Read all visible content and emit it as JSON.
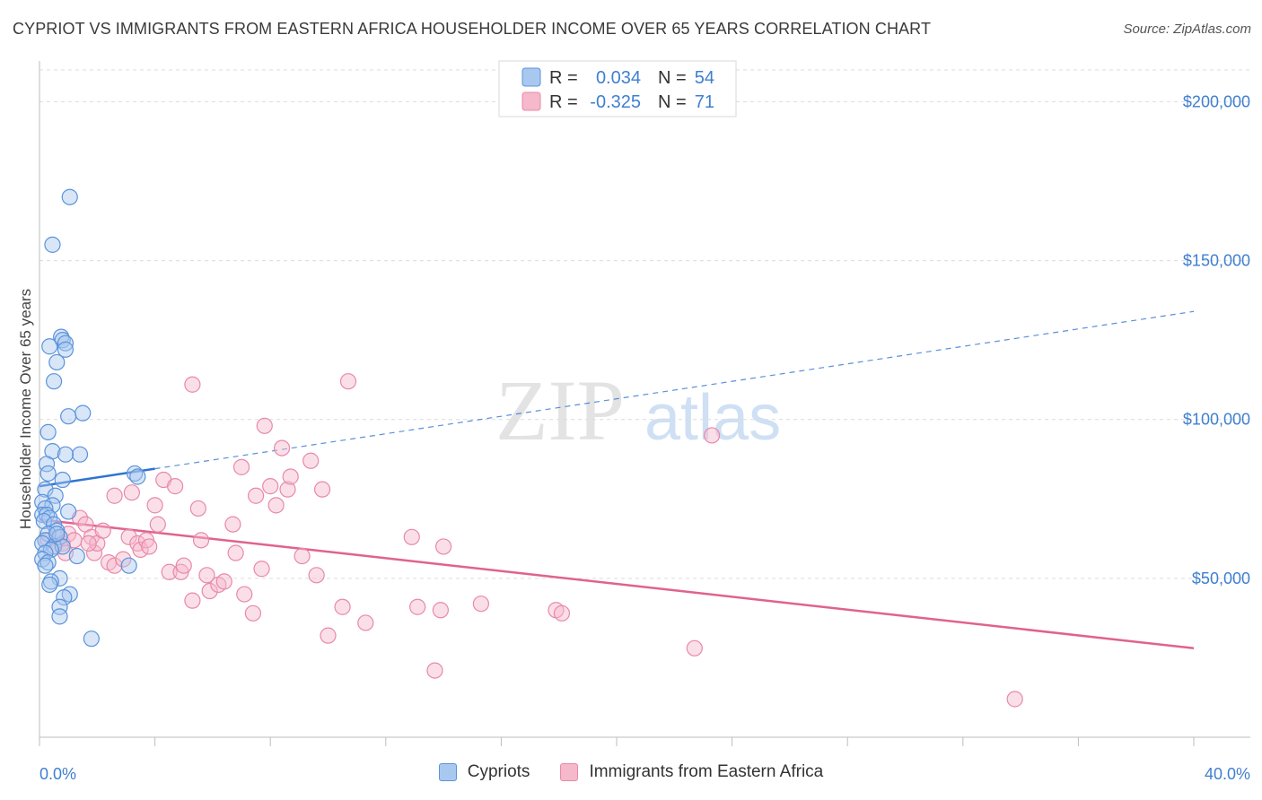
{
  "header": {
    "title": "CYPRIOT VS IMMIGRANTS FROM EASTERN AFRICA HOUSEHOLDER INCOME OVER 65 YEARS CORRELATION CHART",
    "source": "Source: ZipAtlas.com"
  },
  "watermark": {
    "zip": "ZIP",
    "atlas": "atlas"
  },
  "legend_box": {
    "rows": [
      {
        "r_label": "R =",
        "r_value": "0.034",
        "n_label": "N =",
        "n_value": "54"
      },
      {
        "r_label": "R =",
        "r_value": "-0.325",
        "n_label": "N =",
        "n_value": "71"
      }
    ]
  },
  "colors": {
    "blue_fill": "#a9c8f0",
    "blue_stroke": "#5b93da",
    "blue_line": "#2f74d0",
    "pink_fill": "#f6b8cb",
    "pink_stroke": "#e889a8",
    "pink_line": "#e0628f",
    "axis_text": "#3f7fd0"
  },
  "chart_data": {
    "type": "scatter",
    "ylabel": "Householder Income Over 65 years",
    "xlim": [
      0,
      40
    ],
    "ylim": [
      0,
      210000
    ],
    "x_tick_labels": [
      "0.0%",
      "40.0%"
    ],
    "y_ticks": [
      50000,
      100000,
      150000,
      200000
    ],
    "y_tick_labels": [
      "$50,000",
      "$100,000",
      "$150,000",
      "$200,000"
    ],
    "grid": true,
    "series": [
      {
        "name": "Cypriots",
        "color": "#5b93da",
        "points": [
          [
            1.05,
            170000
          ],
          [
            0.45,
            155000
          ],
          [
            0.75,
            126000
          ],
          [
            0.8,
            125000
          ],
          [
            0.9,
            124000
          ],
          [
            0.35,
            123000
          ],
          [
            0.9,
            122000
          ],
          [
            0.6,
            118000
          ],
          [
            0.5,
            112000
          ],
          [
            1.5,
            102000
          ],
          [
            1.0,
            101000
          ],
          [
            0.3,
            96000
          ],
          [
            0.45,
            90000
          ],
          [
            1.4,
            89000
          ],
          [
            0.9,
            89000
          ],
          [
            0.25,
            86000
          ],
          [
            0.3,
            83000
          ],
          [
            3.3,
            83000
          ],
          [
            3.4,
            82000
          ],
          [
            0.8,
            81000
          ],
          [
            0.2,
            78000
          ],
          [
            0.55,
            76000
          ],
          [
            0.1,
            74000
          ],
          [
            0.45,
            73000
          ],
          [
            0.2,
            72000
          ],
          [
            1.0,
            71000
          ],
          [
            0.1,
            70000
          ],
          [
            0.25,
            70000
          ],
          [
            0.35,
            69000
          ],
          [
            0.15,
            68000
          ],
          [
            0.5,
            67000
          ],
          [
            0.6,
            65000
          ],
          [
            0.3,
            64000
          ],
          [
            0.7,
            63000
          ],
          [
            0.2,
            62000
          ],
          [
            0.1,
            61000
          ],
          [
            0.5,
            60000
          ],
          [
            0.8,
            60000
          ],
          [
            0.4,
            59000
          ],
          [
            0.2,
            58000
          ],
          [
            1.3,
            57000
          ],
          [
            0.1,
            56000
          ],
          [
            0.3,
            55000
          ],
          [
            0.2,
            54000
          ],
          [
            3.1,
            54000
          ],
          [
            0.7,
            50000
          ],
          [
            0.4,
            49000
          ],
          [
            0.35,
            48000
          ],
          [
            1.05,
            45000
          ],
          [
            0.85,
            44000
          ],
          [
            0.7,
            41000
          ],
          [
            0.7,
            38000
          ],
          [
            1.8,
            31000
          ],
          [
            0.6,
            64000
          ]
        ]
      },
      {
        "name": "Immigrants from Eastern Africa",
        "color": "#e889a8",
        "points": [
          [
            0.3,
            62000
          ],
          [
            0.5,
            60000
          ],
          [
            0.6,
            63000
          ],
          [
            0.8,
            61000
          ],
          [
            1.0,
            64000
          ],
          [
            1.2,
            62000
          ],
          [
            1.4,
            69000
          ],
          [
            1.6,
            67000
          ],
          [
            1.8,
            63000
          ],
          [
            1.9,
            58000
          ],
          [
            2.0,
            61000
          ],
          [
            2.2,
            65000
          ],
          [
            2.4,
            55000
          ],
          [
            2.6,
            54000
          ],
          [
            2.6,
            76000
          ],
          [
            2.9,
            56000
          ],
          [
            3.1,
            63000
          ],
          [
            3.2,
            77000
          ],
          [
            3.4,
            61000
          ],
          [
            3.5,
            59000
          ],
          [
            3.7,
            62000
          ],
          [
            3.8,
            60000
          ],
          [
            4.0,
            73000
          ],
          [
            4.1,
            67000
          ],
          [
            4.3,
            81000
          ],
          [
            4.5,
            52000
          ],
          [
            4.7,
            79000
          ],
          [
            4.9,
            52000
          ],
          [
            5.0,
            54000
          ],
          [
            5.3,
            43000
          ],
          [
            5.3,
            111000
          ],
          [
            5.5,
            72000
          ],
          [
            5.6,
            62000
          ],
          [
            5.8,
            51000
          ],
          [
            5.9,
            46000
          ],
          [
            6.2,
            48000
          ],
          [
            6.4,
            49000
          ],
          [
            6.7,
            67000
          ],
          [
            6.8,
            58000
          ],
          [
            7.0,
            85000
          ],
          [
            7.1,
            45000
          ],
          [
            7.4,
            39000
          ],
          [
            7.5,
            76000
          ],
          [
            7.7,
            53000
          ],
          [
            7.8,
            98000
          ],
          [
            8.0,
            79000
          ],
          [
            8.2,
            73000
          ],
          [
            8.4,
            91000
          ],
          [
            8.6,
            78000
          ],
          [
            8.7,
            82000
          ],
          [
            9.1,
            57000
          ],
          [
            9.4,
            87000
          ],
          [
            9.6,
            51000
          ],
          [
            9.8,
            78000
          ],
          [
            10.0,
            32000
          ],
          [
            10.5,
            41000
          ],
          [
            10.7,
            112000
          ],
          [
            11.3,
            36000
          ],
          [
            12.9,
            63000
          ],
          [
            13.1,
            41000
          ],
          [
            13.7,
            21000
          ],
          [
            13.9,
            40000
          ],
          [
            14.0,
            60000
          ],
          [
            15.3,
            42000
          ],
          [
            17.9,
            40000
          ],
          [
            18.1,
            39000
          ],
          [
            22.7,
            28000
          ],
          [
            23.3,
            95000
          ],
          [
            33.8,
            12000
          ],
          [
            0.9,
            58000
          ],
          [
            1.7,
            61000
          ]
        ]
      }
    ],
    "trendlines": [
      {
        "series": "Cypriots",
        "x": [
          0,
          40
        ],
        "y": [
          79000,
          134000
        ],
        "solid_until_x": 4.0
      },
      {
        "series": "Immigrants from Eastern Africa",
        "x": [
          0,
          40
        ],
        "y": [
          68500,
          28000
        ]
      }
    ]
  },
  "bottom_legend": {
    "items": [
      {
        "label": "Cypriots"
      },
      {
        "label": "Immigrants from Eastern Africa"
      }
    ]
  }
}
